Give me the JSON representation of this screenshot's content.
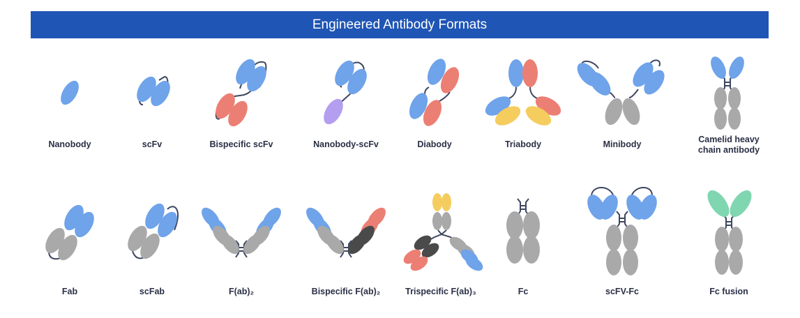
{
  "title": "Engineered Antibody Formats",
  "colors": {
    "banner": "#1f55b5",
    "variable_domain_a": "#6fa3ea",
    "variable_domain_b": "#ec7f74",
    "constant_domain": "#a9a9a9",
    "dark_domain": "#4a4a4a",
    "third_specificity": "#f5cc5e",
    "nanobody_alt": "#b39ef0",
    "fusion_partner": "#7fd6b0",
    "linker": "#3d4660"
  },
  "formats": [
    {
      "label": "Nanobody"
    },
    {
      "label": "scFv"
    },
    {
      "label": "Bispecific scFv"
    },
    {
      "label": "Nanobody-scFv"
    },
    {
      "label": "Diabody"
    },
    {
      "label": "Triabody"
    },
    {
      "label": "Minibody"
    },
    {
      "label": "Camelid heavy chain antibody"
    },
    {
      "label": "Fab"
    },
    {
      "label": "scFab"
    },
    {
      "label": "F(ab)₂"
    },
    {
      "label": "Bispecific F(ab)₂"
    },
    {
      "label": "Trispecific F(ab)₃"
    },
    {
      "label": "Fc"
    },
    {
      "label": "scFV-Fc"
    },
    {
      "label": "Fc fusion"
    }
  ]
}
